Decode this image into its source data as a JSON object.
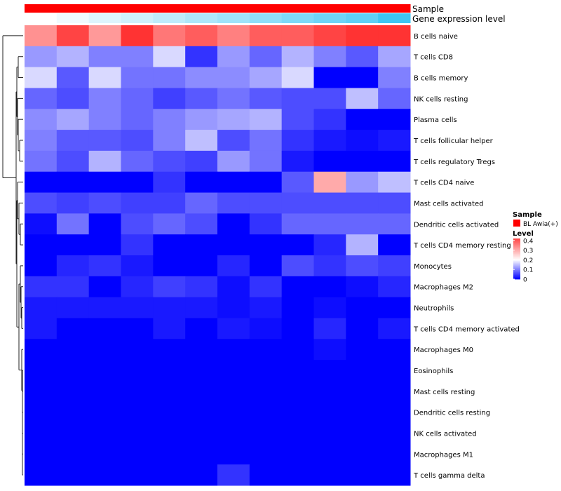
{
  "chart_data": {
    "type": "heatmap",
    "title": "",
    "annotation_labels": {
      "sample": "Sample",
      "expression": "Gene expression level"
    },
    "rows": [
      "B cells naive",
      "T cells CD8",
      "B cells memory",
      "NK cells resting",
      "Plasma cells",
      "T cells follicular helper",
      "T cells regulatory  Tregs",
      "T cells CD4 naive",
      "Mast cells activated",
      "Dendritic cells activated",
      "T cells CD4 memory resting",
      "Monocytes",
      "Macrophages M2",
      "Neutrophils",
      "T cells CD4 memory activated",
      "Macrophages M0",
      "Eosinophils",
      "Mast cells resting",
      "Dendritic cells resting",
      "NK cells activated",
      "Macrophages M1",
      "T cells gamma delta"
    ],
    "values": [
      [
        0.33,
        0.42,
        0.32,
        0.44,
        0.36,
        0.39,
        0.35,
        0.39,
        0.39,
        0.42,
        0.44,
        0.44
      ],
      [
        0.12,
        0.14,
        0.1,
        0.1,
        0.17,
        0.04,
        0.12,
        0.08,
        0.14,
        0.1,
        0.07,
        0.13
      ],
      [
        0.17,
        0.07,
        0.17,
        0.09,
        0.09,
        0.11,
        0.11,
        0.13,
        0.17,
        0.0,
        0.0,
        0.1
      ],
      [
        0.08,
        0.06,
        0.1,
        0.08,
        0.05,
        0.07,
        0.09,
        0.07,
        0.06,
        0.06,
        0.15,
        0.08
      ],
      [
        0.11,
        0.13,
        0.1,
        0.08,
        0.1,
        0.12,
        0.13,
        0.14,
        0.06,
        0.04,
        0.0,
        0.0
      ],
      [
        0.1,
        0.07,
        0.07,
        0.06,
        0.1,
        0.15,
        0.06,
        0.09,
        0.04,
        0.02,
        0.01,
        0.02
      ],
      [
        0.09,
        0.06,
        0.14,
        0.08,
        0.06,
        0.05,
        0.12,
        0.09,
        0.02,
        0.0,
        0.0,
        0.0
      ],
      [
        0.0,
        0.0,
        0.0,
        0.0,
        0.04,
        0.0,
        0.0,
        0.0,
        0.07,
        0.3,
        0.12,
        0.15
      ],
      [
        0.06,
        0.05,
        0.06,
        0.05,
        0.05,
        0.08,
        0.06,
        0.06,
        0.06,
        0.06,
        0.06,
        0.06
      ],
      [
        0.01,
        0.09,
        0.0,
        0.06,
        0.08,
        0.06,
        0.0,
        0.04,
        0.08,
        0.08,
        0.08,
        0.08
      ],
      [
        0.0,
        0.0,
        0.0,
        0.04,
        0.0,
        0.0,
        0.0,
        0.0,
        0.0,
        0.03,
        0.14,
        0.0
      ],
      [
        0.0,
        0.03,
        0.04,
        0.02,
        0.0,
        0.0,
        0.03,
        0.0,
        0.06,
        0.04,
        0.06,
        0.05
      ],
      [
        0.04,
        0.04,
        0.0,
        0.03,
        0.05,
        0.04,
        0.01,
        0.04,
        0.0,
        0.0,
        0.01,
        0.03
      ],
      [
        0.02,
        0.02,
        0.02,
        0.02,
        0.02,
        0.02,
        0.01,
        0.02,
        0.0,
        0.01,
        0.0,
        0.0
      ],
      [
        0.02,
        0.0,
        0.0,
        0.0,
        0.02,
        0.0,
        0.02,
        0.01,
        0.0,
        0.03,
        0.0,
        0.02
      ],
      [
        0.0,
        0.0,
        0.0,
        0.0,
        0.0,
        0.0,
        0.0,
        0.0,
        0.0,
        0.01,
        0.0,
        0.0
      ],
      [
        0.0,
        0.0,
        0.0,
        0.0,
        0.0,
        0.0,
        0.0,
        0.0,
        0.0,
        0.0,
        0.0,
        0.0
      ],
      [
        0.0,
        0.0,
        0.0,
        0.0,
        0.0,
        0.0,
        0.0,
        0.0,
        0.0,
        0.0,
        0.0,
        0.0
      ],
      [
        0.0,
        0.0,
        0.0,
        0.0,
        0.0,
        0.0,
        0.0,
        0.0,
        0.0,
        0.0,
        0.0,
        0.0
      ],
      [
        0.0,
        0.0,
        0.0,
        0.0,
        0.0,
        0.0,
        0.0,
        0.0,
        0.0,
        0.0,
        0.0,
        0.0
      ],
      [
        0.0,
        0.0,
        0.0,
        0.0,
        0.0,
        0.0,
        0.0,
        0.0,
        0.0,
        0.0,
        0.0,
        0.0
      ],
      [
        0.0,
        0.0,
        0.0,
        0.0,
        0.0,
        0.0,
        0.04,
        0.0,
        0.0,
        0.0,
        0.0,
        0.0
      ]
    ],
    "column_annotations": {
      "sample": [
        "BL Awia(+)",
        "BL Awia(+)",
        "BL Awia(+)",
        "BL Awia(+)",
        "BL Awia(+)",
        "BL Awia(+)",
        "BL Awia(+)",
        "BL Awia(+)",
        "BL Awia(+)",
        "BL Awia(+)",
        "BL Awia(+)",
        "BL Awia(+)"
      ],
      "expression_level": [
        0.0,
        0.08,
        0.17,
        0.25,
        0.33,
        0.42,
        0.5,
        0.58,
        0.67,
        0.75,
        0.83,
        1.0
      ]
    },
    "color_scale": {
      "low": "#0000ff",
      "mid": "#ffffff",
      "high": "#ff0000",
      "mid_value": 0.2,
      "max_value": 0.5
    },
    "expression_scale": {
      "low": "#ffffff",
      "high": "#3ec6f4"
    },
    "legend": {
      "position": "right",
      "sample_title": "Sample",
      "sample_entries": [
        {
          "label": "BL Awia(+)",
          "color": "#ff0000"
        }
      ],
      "level_title": "Level",
      "level_ticks": [
        "0.4",
        "0.3",
        "0.2",
        "0.1",
        "0"
      ],
      "level_tick_values": [
        0.4,
        0.3,
        0.2,
        0.1,
        0.0
      ]
    },
    "row_clustering": "left dendrogram"
  }
}
